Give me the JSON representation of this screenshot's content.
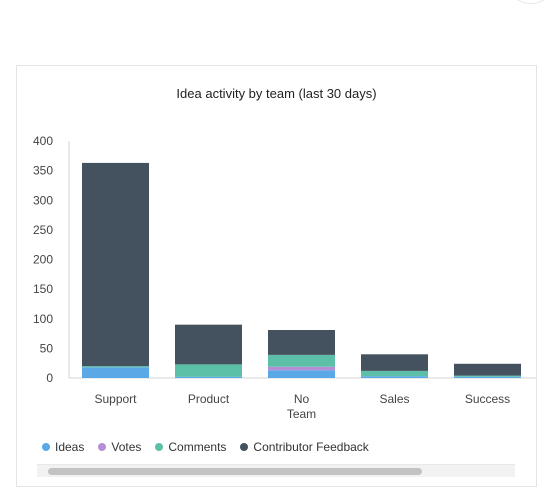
{
  "chart_data": {
    "type": "bar",
    "stacked": true,
    "title": "Idea activity by team (last 30 days)",
    "categories": [
      "Support",
      "Product",
      "No Team",
      "Sales",
      "Success"
    ],
    "category_lines": [
      [
        "Support"
      ],
      [
        "Product"
      ],
      [
        "No",
        "Team"
      ],
      [
        "Sales"
      ],
      [
        "Success"
      ]
    ],
    "series": [
      {
        "name": "Ideas",
        "color": "#5aa9e6",
        "values": [
          18,
          2,
          13,
          3,
          2
        ]
      },
      {
        "name": "Votes",
        "color": "#b68ed6",
        "values": [
          0,
          0,
          6,
          0,
          0
        ]
      },
      {
        "name": "Comments",
        "color": "#5cc0a9",
        "values": [
          2,
          21,
          20,
          9,
          2
        ]
      },
      {
        "name": "Contributor Feedback",
        "color": "#43525e",
        "values": [
          343,
          67,
          42,
          28,
          20
        ]
      }
    ],
    "y_ticks": [
      "400",
      "350",
      "300",
      "250",
      "200",
      "150",
      "100",
      "50",
      "0"
    ],
    "ylim": [
      0,
      400
    ],
    "grid": false,
    "legend_position": "bottom-left"
  }
}
